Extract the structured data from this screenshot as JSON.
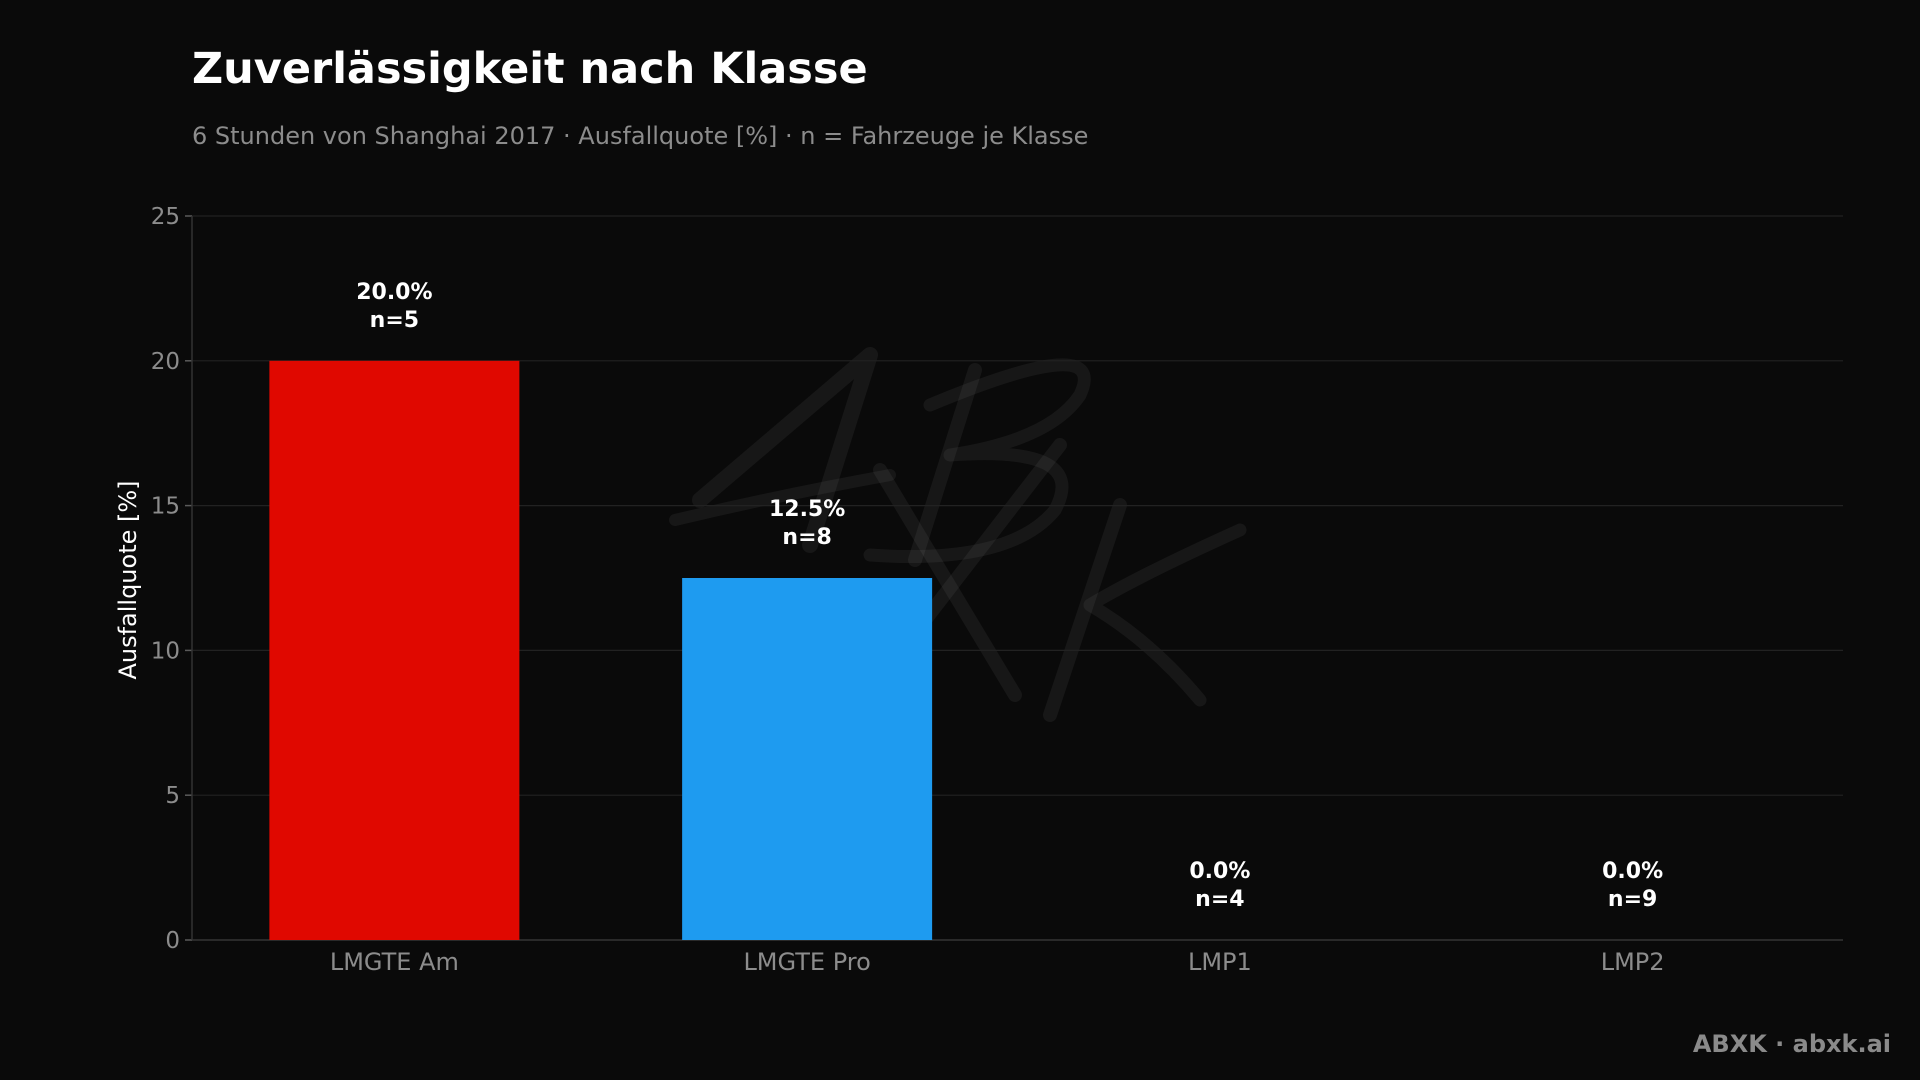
{
  "chart_data": {
    "type": "bar",
    "title": "Zuverlässigkeit nach Klasse",
    "subtitle": "6 Stunden von Shanghai 2017 · Ausfallquote [%] · n = Fahrzeuge je Klasse",
    "xlabel": "",
    "ylabel": "Ausfallquote [%]",
    "ylim": [
      0,
      25
    ],
    "yticks": [
      0,
      5,
      10,
      15,
      20,
      25
    ],
    "grid": true,
    "legend": "none",
    "categories": [
      "LMGTE Am",
      "LMGTE Pro",
      "LMP1",
      "LMP2"
    ],
    "values": [
      20.0,
      12.5,
      0.0,
      0.0
    ],
    "n": [
      5,
      8,
      4,
      9
    ],
    "value_labels": [
      "20.0%",
      "12.5%",
      "0.0%",
      "0.0%"
    ],
    "n_labels": [
      "n=5",
      "n=8",
      "n=4",
      "n=9"
    ],
    "colors": [
      "#e00800",
      "#1e9bf0",
      "#e00800",
      "#e00800"
    ]
  },
  "theme": {
    "background": "#0a0a0a",
    "grid_color": "#222222",
    "tick_color": "#8c8c8c",
    "text_color": "#ffffff"
  },
  "watermark": {
    "text": "ABXK"
  },
  "footer": {
    "brand": "ABXK · abxk.ai"
  }
}
